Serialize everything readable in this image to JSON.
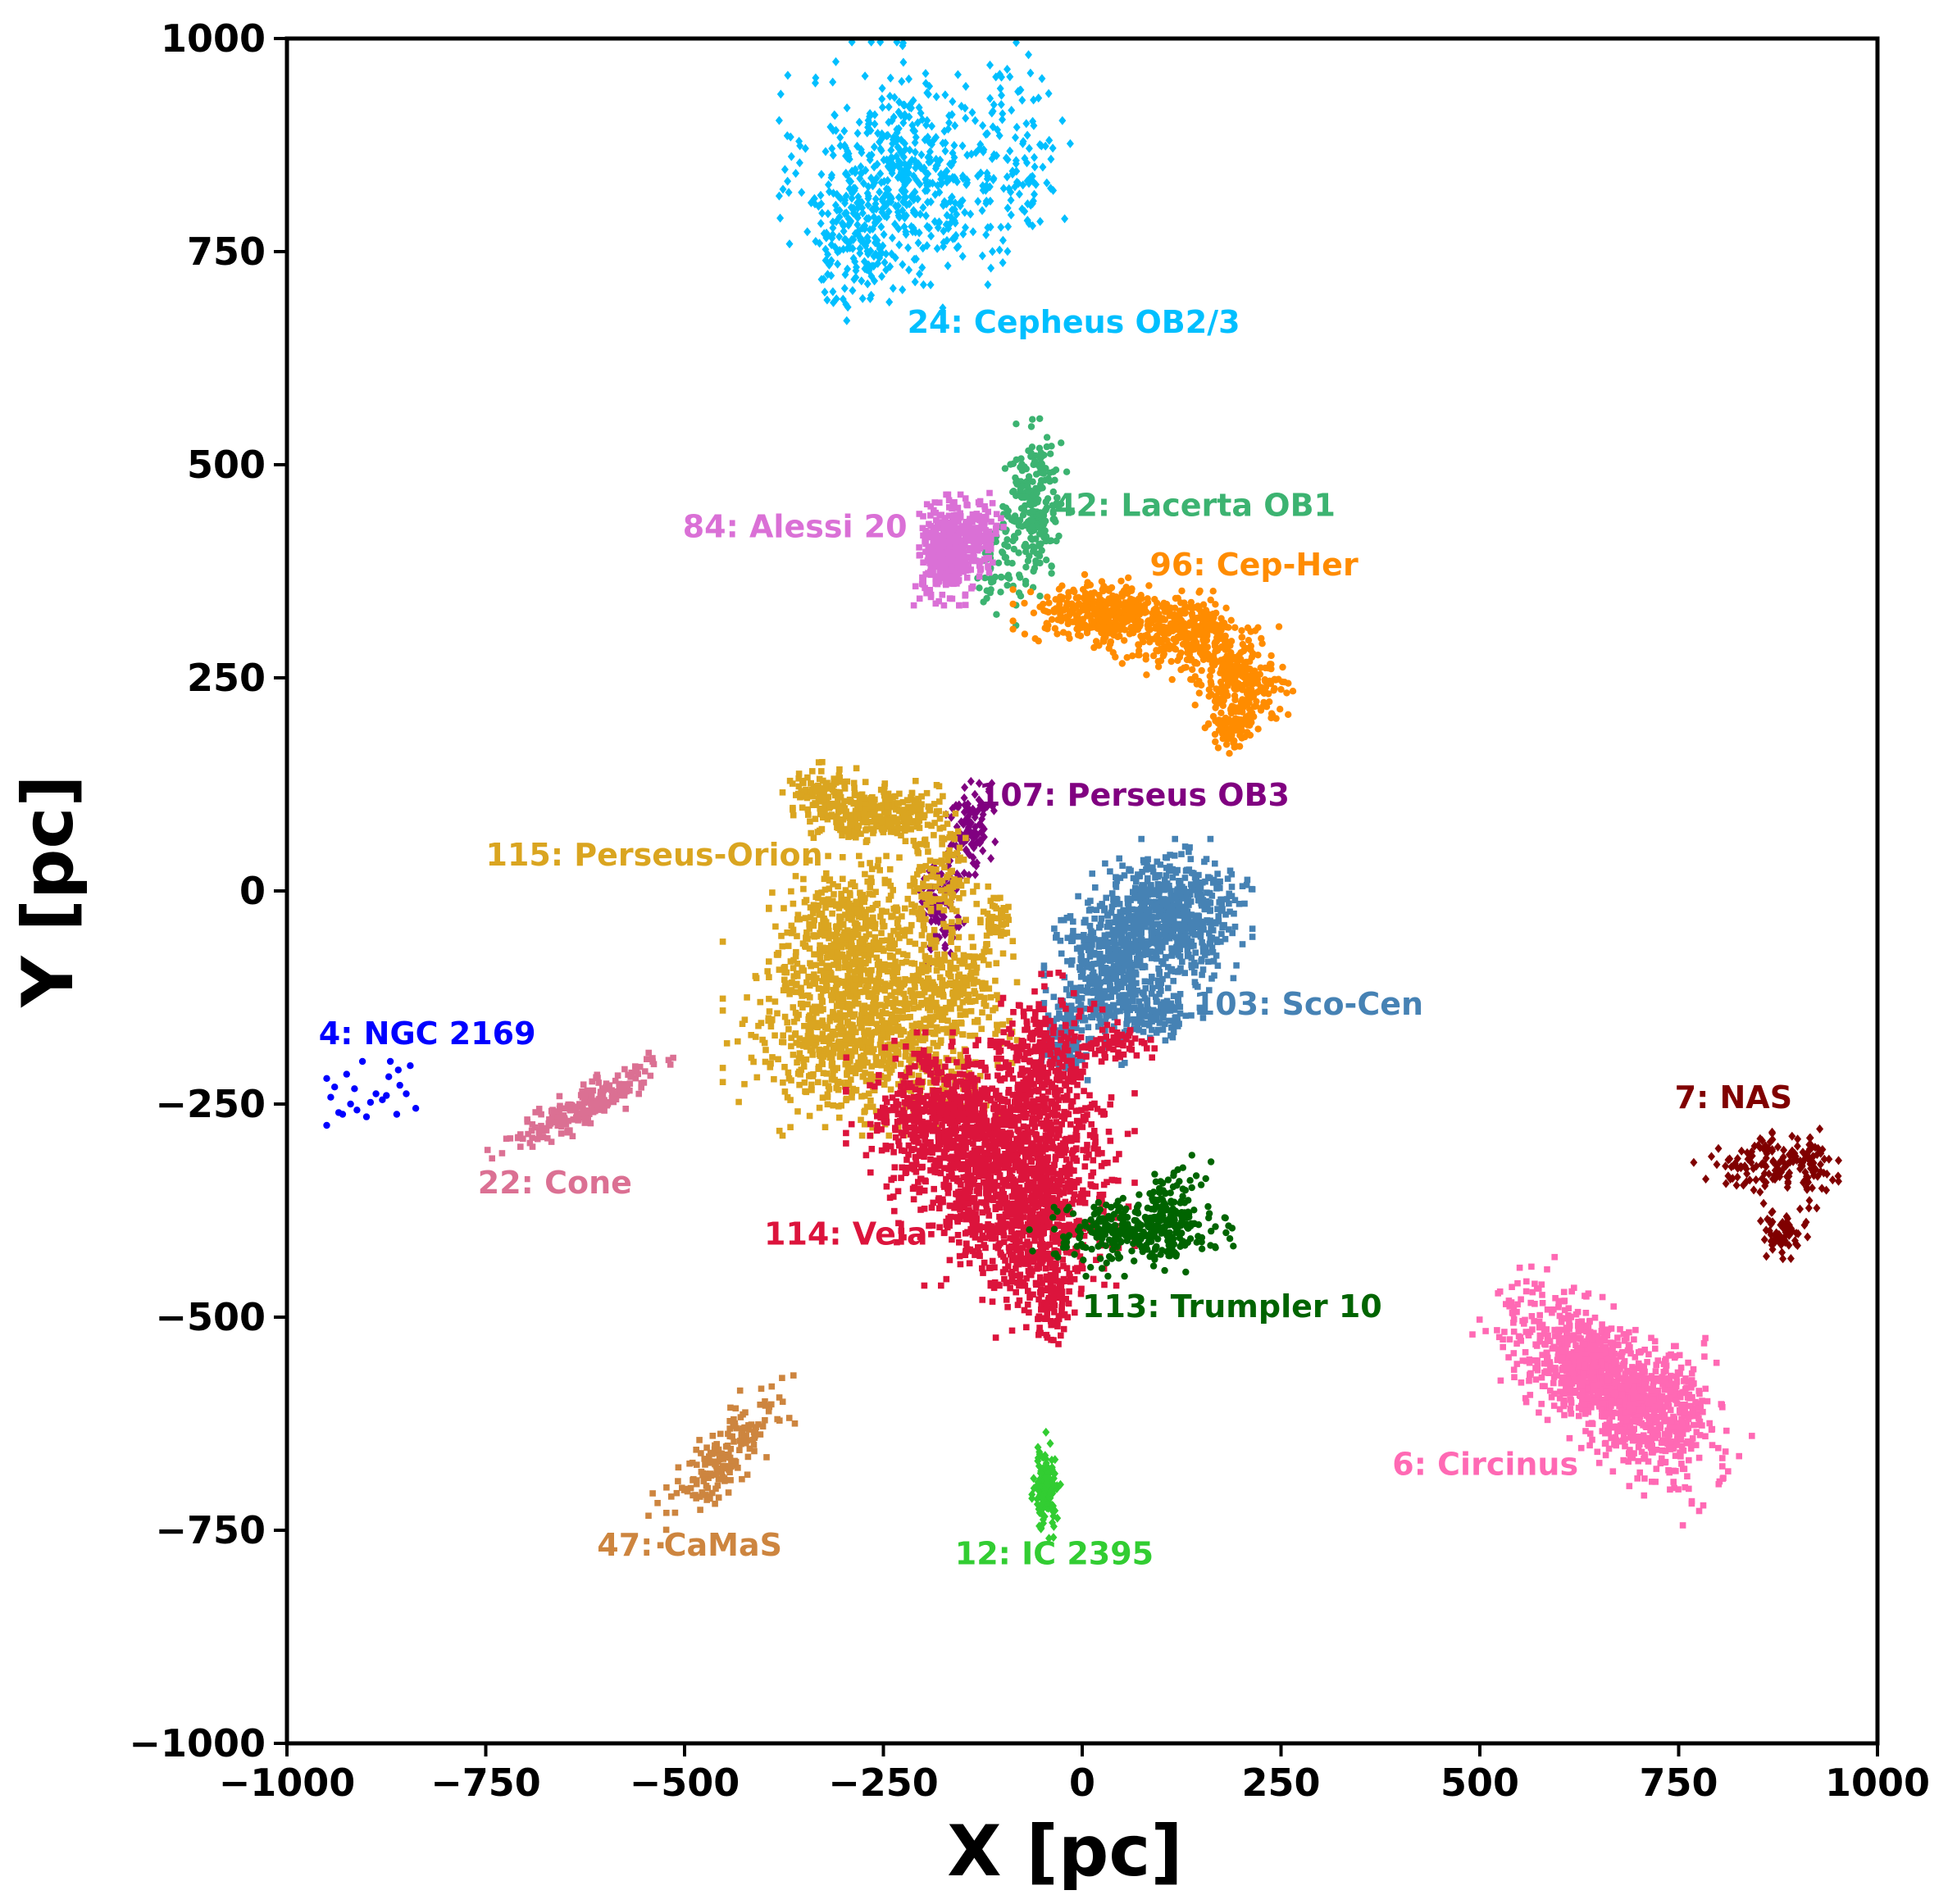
{
  "chart_data": {
    "type": "scatter",
    "xlabel": "X [pc]",
    "ylabel": "Y [pc]",
    "xlim": [
      -1000,
      1000
    ],
    "ylim": [
      -1000,
      1000
    ],
    "xticks": [
      -1000,
      -750,
      -500,
      -250,
      0,
      250,
      500,
      750,
      1000
    ],
    "yticks": [
      -1000,
      -750,
      -500,
      -250,
      0,
      250,
      500,
      750,
      1000
    ],
    "xtick_labels": [
      "−1000",
      "−750",
      "−500",
      "−250",
      "0",
      "250",
      "500",
      "750",
      "1000"
    ],
    "ytick_labels": [
      "−1000",
      "−750",
      "−500",
      "−250",
      "0",
      "250",
      "500",
      "750",
      "1000"
    ],
    "grid": false,
    "groups": [
      {
        "id": "cepheus",
        "label": "24: Cepheus OB2/3",
        "color": "#00bfff",
        "marker": "diamond",
        "label_x": -220,
        "label_y": 655,
        "blobs": [
          {
            "cx": -225,
            "cy": 840,
            "sx": 60,
            "sy": 60,
            "angle": 0,
            "n": 520
          },
          {
            "cx": -290,
            "cy": 760,
            "sx": 30,
            "sy": 35,
            "angle": 0,
            "n": 120
          },
          {
            "cx": -80,
            "cy": 860,
            "sx": 25,
            "sy": 60,
            "angle": 0,
            "n": 110
          }
        ]
      },
      {
        "id": "lacerta",
        "label": "42: Lacerta OB1",
        "color": "#3cb371",
        "marker": "circle",
        "label_x": -35,
        "label_y": 440,
        "blobs": [
          {
            "cx": -60,
            "cy": 450,
            "sx": 18,
            "sy": 40,
            "angle": 0,
            "n": 230
          },
          {
            "cx": -110,
            "cy": 380,
            "sx": 15,
            "sy": 30,
            "angle": 0,
            "n": 60
          }
        ]
      },
      {
        "id": "alessi",
        "label": "84: Alessi 20",
        "color": "#da70d6",
        "marker": "square",
        "label_x": -220,
        "label_y": 415,
        "label_anchor": "end",
        "blobs": [
          {
            "cx": -165,
            "cy": 400,
            "sx": 18,
            "sy": 25,
            "angle": 0,
            "n": 450
          },
          {
            "cx": -125,
            "cy": 420,
            "sx": 10,
            "sy": 18,
            "angle": 0,
            "n": 70
          }
        ]
      },
      {
        "id": "cepher",
        "label": "96: Cep-Her",
        "color": "#ff8c00",
        "marker": "circle",
        "label_x": 85,
        "label_y": 370,
        "blobs": [
          {
            "cx": 30,
            "cy": 325,
            "sx": 45,
            "sy": 18,
            "angle": 0,
            "n": 380
          },
          {
            "cx": 130,
            "cy": 300,
            "sx": 35,
            "sy": 20,
            "angle": 0,
            "n": 280
          },
          {
            "cx": 200,
            "cy": 245,
            "sx": 25,
            "sy": 25,
            "angle": 0,
            "n": 240
          },
          {
            "cx": 190,
            "cy": 195,
            "sx": 12,
            "sy": 14,
            "angle": 0,
            "n": 90
          }
        ]
      },
      {
        "id": "persob3",
        "label": "107: Perseus OB3",
        "color": "#800080",
        "marker": "diamond",
        "label_x": -130,
        "label_y": 100,
        "blobs": [
          {
            "cx": -140,
            "cy": 75,
            "sx": 12,
            "sy": 25,
            "angle": 0,
            "n": 110
          },
          {
            "cx": -180,
            "cy": -20,
            "sx": 12,
            "sy": 35,
            "angle": 0,
            "n": 80
          }
        ]
      },
      {
        "id": "perseusorion",
        "label": "115: Perseus-Orion",
        "color": "#daa520",
        "marker": "square",
        "label_x": -750,
        "label_y": 30,
        "blobs": [
          {
            "cx": -330,
            "cy": 120,
            "sx": 20,
            "sy": 12,
            "angle": 0,
            "n": 90
          },
          {
            "cx": -260,
            "cy": 90,
            "sx": 40,
            "sy": 15,
            "angle": 0,
            "n": 300
          },
          {
            "cx": -180,
            "cy": 10,
            "sx": 20,
            "sy": 35,
            "angle": 0,
            "n": 140
          },
          {
            "cx": -290,
            "cy": -50,
            "sx": 40,
            "sy": 35,
            "angle": 0,
            "n": 500
          },
          {
            "cx": -270,
            "cy": -170,
            "sx": 70,
            "sy": 45,
            "angle": 0,
            "n": 900
          },
          {
            "cx": -160,
            "cy": -110,
            "sx": 30,
            "sy": 25,
            "angle": 0,
            "n": 180
          },
          {
            "cx": -110,
            "cy": -40,
            "sx": 10,
            "sy": 20,
            "angle": 0,
            "n": 60
          }
        ]
      },
      {
        "id": "scocen",
        "label": "103: Sco-Cen",
        "color": "#4682b4",
        "marker": "square",
        "label_x": 140,
        "label_y": -145,
        "blobs": [
          {
            "cx": 110,
            "cy": -30,
            "sx": 40,
            "sy": 35,
            "angle": 0,
            "n": 650
          },
          {
            "cx": 30,
            "cy": -100,
            "sx": 30,
            "sy": 40,
            "angle": 0,
            "n": 420
          },
          {
            "cx": -20,
            "cy": -170,
            "sx": 15,
            "sy": 20,
            "angle": 0,
            "n": 120
          },
          {
            "cx": 100,
            "cy": -145,
            "sx": 20,
            "sy": 12,
            "angle": 0,
            "n": 80
          }
        ]
      },
      {
        "id": "ngc2169",
        "label": "4: NGC 2169",
        "color": "#0000ff",
        "marker": "circle",
        "label_x": -960,
        "label_y": -180,
        "points": [
          [
            -950,
            -220
          ],
          [
            -940,
            -230
          ],
          [
            -935,
            -260
          ],
          [
            -920,
            -250
          ],
          [
            -912,
            -257
          ],
          [
            -900,
            -265
          ],
          [
            -880,
            -245
          ],
          [
            -875,
            -240
          ],
          [
            -870,
            -200
          ],
          [
            -860,
            -210
          ],
          [
            -845,
            -205
          ],
          [
            -838,
            -255
          ],
          [
            -950,
            -275
          ],
          [
            -905,
            -200
          ],
          [
            -925,
            -215
          ],
          [
            -888,
            -238
          ],
          [
            -930,
            -262
          ],
          [
            -858,
            -228
          ],
          [
            -895,
            -248
          ],
          [
            -862,
            -262
          ],
          [
            -945,
            -242
          ],
          [
            -872,
            -218
          ],
          [
            -915,
            -232
          ],
          [
            -850,
            -238
          ]
        ]
      },
      {
        "id": "cone",
        "label": "22: Cone",
        "color": "#db7093",
        "marker": "square",
        "label_x": -760,
        "label_y": -355,
        "blobs": [
          {
            "cx": -630,
            "cy": -255,
            "sx": 50,
            "sy": 10,
            "angle": 27,
            "n": 220
          }
        ]
      },
      {
        "id": "vela",
        "label": "114: Vela",
        "color": "#dc143c",
        "marker": "square",
        "label_x": -400,
        "label_y": -415,
        "blobs": [
          {
            "cx": -90,
            "cy": -320,
            "sx": 60,
            "sy": 55,
            "angle": 0,
            "n": 1200
          },
          {
            "cx": -180,
            "cy": -270,
            "sx": 45,
            "sy": 40,
            "angle": 0,
            "n": 500
          },
          {
            "cx": -60,
            "cy": -420,
            "sx": 35,
            "sy": 40,
            "angle": 0,
            "n": 300
          },
          {
            "cx": -50,
            "cy": -200,
            "sx": 30,
            "sy": 40,
            "angle": 0,
            "n": 250
          },
          {
            "cx": -40,
            "cy": -490,
            "sx": 10,
            "sy": 20,
            "angle": 0,
            "n": 60
          },
          {
            "cx": 40,
            "cy": -180,
            "sx": 25,
            "sy": 10,
            "angle": 0,
            "n": 60
          }
        ]
      },
      {
        "id": "trumpler",
        "label": "113: Trumpler 10",
        "color": "#006400",
        "marker": "circle",
        "label_x": 0,
        "label_y": -500,
        "blobs": [
          {
            "cx": 60,
            "cy": -400,
            "sx": 50,
            "sy": 20,
            "angle": 0,
            "n": 280
          },
          {
            "cx": 110,
            "cy": -375,
            "sx": 20,
            "sy": 25,
            "angle": 0,
            "n": 120
          }
        ]
      },
      {
        "id": "nas",
        "label": "7: NAS",
        "color": "#800000",
        "marker": "diamond",
        "label_x": 745,
        "label_y": -255,
        "blobs": [
          {
            "cx": 860,
            "cy": -320,
            "sx": 35,
            "sy": 18,
            "angle": 0,
            "n": 130
          },
          {
            "cx": 880,
            "cy": -400,
            "sx": 15,
            "sy": 15,
            "angle": 0,
            "n": 60
          },
          {
            "cx": 915,
            "cy": -320,
            "sx": 12,
            "sy": 20,
            "angle": 0,
            "n": 40
          }
        ]
      },
      {
        "id": "circinus",
        "label": "6: Circinus",
        "color": "#ff69b4",
        "marker": "square",
        "label_x": 390,
        "label_y": -685,
        "blobs": [
          {
            "cx": 660,
            "cy": -580,
            "sx": 70,
            "sy": 30,
            "angle": -38,
            "n": 1100
          },
          {
            "cx": 740,
            "cy": -600,
            "sx": 25,
            "sy": 30,
            "angle": 0,
            "n": 150
          }
        ]
      },
      {
        "id": "camas",
        "label": "47: CaMaS",
        "color": "#cd853f",
        "marker": "square",
        "label_x": -610,
        "label_y": -780,
        "blobs": [
          {
            "cx": -450,
            "cy": -665,
            "sx": 50,
            "sy": 15,
            "angle": 48,
            "n": 180
          }
        ]
      },
      {
        "id": "ic2395",
        "label": "12: IC 2395",
        "color": "#32cd32",
        "marker": "diamond",
        "label_x": -160,
        "label_y": -790,
        "blobs": [
          {
            "cx": -45,
            "cy": -700,
            "sx": 7,
            "sy": 25,
            "angle": 0,
            "n": 150
          }
        ]
      }
    ]
  }
}
